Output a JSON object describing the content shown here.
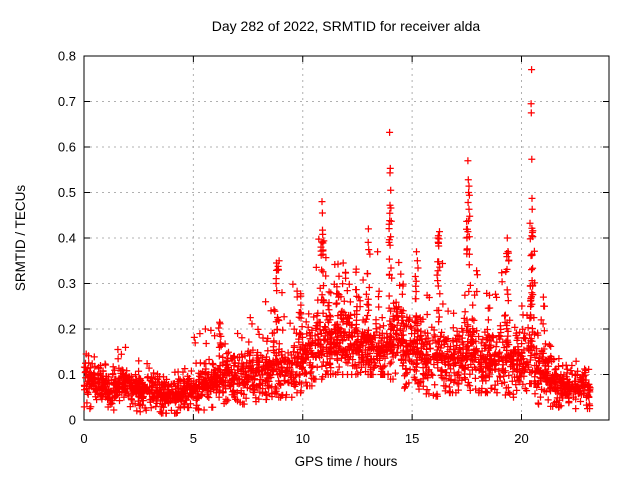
{
  "chart_data": {
    "type": "scatter",
    "title": "Day 282 of 2022, SRMTID for receiver alda",
    "xlabel": "GPS time / hours",
    "ylabel": "SRMTID / TECUs",
    "xlim": [
      0,
      24
    ],
    "ylim": [
      0,
      0.8
    ],
    "xticks": [
      0,
      5,
      10,
      15,
      20
    ],
    "yticks": [
      0,
      0.1,
      0.2,
      0.3,
      0.4,
      0.5,
      0.6,
      0.7,
      0.8
    ],
    "grid": true,
    "legend": "none",
    "x_data_range": [
      0,
      23.15
    ],
    "marker": {
      "shape": "plus",
      "color": "#ff0000",
      "size": 7
    },
    "colors": {
      "border": "#000000",
      "grid": "#b0b0b0",
      "background": "#ffffff"
    },
    "series_model": {
      "comment": "Dense ~2800-point scatter estimated from pixels: bins=[h0,h1,band_center,band_halfwidth,count,upper_tail_max,lower_min]; streaks=vertical bursts [x,y0,y1,n]; outliers=exact prominent points [x,y]",
      "seed": 20221282,
      "bins": [
        [
          0.0,
          0.5,
          0.085,
          0.03,
          55,
          0.15,
          0.025
        ],
        [
          0.5,
          1.0,
          0.075,
          0.028,
          55,
          0.13,
          0.022
        ],
        [
          1.0,
          1.5,
          0.07,
          0.025,
          55,
          0.125,
          0.022
        ],
        [
          1.5,
          2.0,
          0.08,
          0.03,
          55,
          0.16,
          0.022
        ],
        [
          2.0,
          2.5,
          0.07,
          0.025,
          55,
          0.12,
          0.02
        ],
        [
          2.5,
          3.0,
          0.065,
          0.025,
          55,
          0.13,
          0.018
        ],
        [
          3.0,
          3.5,
          0.06,
          0.022,
          55,
          0.105,
          0.015
        ],
        [
          3.5,
          4.0,
          0.055,
          0.02,
          55,
          0.1,
          0.015
        ],
        [
          4.0,
          4.5,
          0.055,
          0.02,
          55,
          0.11,
          0.015
        ],
        [
          4.5,
          5.0,
          0.062,
          0.025,
          55,
          0.13,
          0.018
        ],
        [
          5.0,
          5.5,
          0.072,
          0.03,
          55,
          0.19,
          0.022
        ],
        [
          5.5,
          6.0,
          0.08,
          0.032,
          55,
          0.2,
          0.028
        ],
        [
          6.0,
          6.5,
          0.092,
          0.035,
          55,
          0.22,
          0.03
        ],
        [
          6.5,
          7.0,
          0.1,
          0.035,
          55,
          0.185,
          0.035
        ],
        [
          7.0,
          7.5,
          0.102,
          0.035,
          55,
          0.2,
          0.035
        ],
        [
          7.5,
          8.0,
          0.11,
          0.04,
          55,
          0.23,
          0.035
        ],
        [
          8.0,
          8.5,
          0.112,
          0.042,
          55,
          0.26,
          0.045
        ],
        [
          8.5,
          9.0,
          0.12,
          0.05,
          55,
          0.33,
          0.05
        ],
        [
          9.0,
          9.5,
          0.11,
          0.042,
          50,
          0.28,
          0.05
        ],
        [
          9.5,
          10.0,
          0.125,
          0.05,
          55,
          0.3,
          0.06
        ],
        [
          10.0,
          10.5,
          0.14,
          0.052,
          58,
          0.33,
          0.075
        ],
        [
          10.5,
          11.0,
          0.155,
          0.058,
          58,
          0.4,
          0.09
        ],
        [
          11.0,
          11.5,
          0.17,
          0.055,
          58,
          0.36,
          0.1
        ],
        [
          11.5,
          12.0,
          0.175,
          0.055,
          58,
          0.35,
          0.1
        ],
        [
          12.0,
          12.5,
          0.165,
          0.055,
          58,
          0.33,
          0.1
        ],
        [
          12.5,
          13.0,
          0.162,
          0.055,
          58,
          0.35,
          0.1
        ],
        [
          13.0,
          13.5,
          0.155,
          0.052,
          56,
          0.38,
          0.1
        ],
        [
          13.5,
          14.0,
          0.158,
          0.052,
          56,
          0.33,
          0.1
        ],
        [
          14.0,
          14.5,
          0.175,
          0.06,
          58,
          0.43,
          0.09
        ],
        [
          14.5,
          15.0,
          0.15,
          0.055,
          56,
          0.32,
          0.07
        ],
        [
          15.0,
          15.5,
          0.16,
          0.055,
          58,
          0.37,
          0.055
        ],
        [
          15.5,
          16.0,
          0.14,
          0.05,
          55,
          0.28,
          0.045
        ],
        [
          16.0,
          16.5,
          0.138,
          0.052,
          55,
          0.39,
          0.045
        ],
        [
          16.5,
          17.0,
          0.12,
          0.048,
          55,
          0.25,
          0.06
        ],
        [
          17.0,
          17.5,
          0.13,
          0.05,
          55,
          0.3,
          0.06
        ],
        [
          17.5,
          18.0,
          0.158,
          0.062,
          58,
          0.43,
          0.065
        ],
        [
          18.0,
          18.5,
          0.13,
          0.05,
          55,
          0.28,
          0.06
        ],
        [
          18.5,
          19.0,
          0.13,
          0.05,
          55,
          0.3,
          0.06
        ],
        [
          19.0,
          19.5,
          0.14,
          0.052,
          55,
          0.38,
          0.055
        ],
        [
          19.5,
          20.0,
          0.13,
          0.05,
          55,
          0.3,
          0.05
        ],
        [
          20.0,
          20.35,
          0.13,
          0.05,
          38,
          0.28,
          0.055
        ],
        [
          20.35,
          20.6,
          0.2,
          0.095,
          30,
          0.44,
          0.08
        ],
        [
          20.6,
          21.0,
          0.11,
          0.045,
          45,
          0.26,
          0.035
        ],
        [
          21.0,
          21.5,
          0.09,
          0.038,
          55,
          0.19,
          0.03
        ],
        [
          21.5,
          22.0,
          0.078,
          0.03,
          58,
          0.14,
          0.028
        ],
        [
          22.0,
          22.5,
          0.07,
          0.028,
          58,
          0.13,
          0.025
        ],
        [
          22.5,
          23.15,
          0.068,
          0.028,
          62,
          0.12,
          0.025
        ]
      ],
      "streaks": [
        [
          6.2,
          0.08,
          0.21,
          9
        ],
        [
          8.85,
          0.14,
          0.355,
          13
        ],
        [
          9.9,
          0.1,
          0.295,
          11
        ],
        [
          10.9,
          0.14,
          0.42,
          16
        ],
        [
          11.25,
          0.12,
          0.32,
          11
        ],
        [
          11.6,
          0.12,
          0.345,
          12
        ],
        [
          12.0,
          0.12,
          0.33,
          11
        ],
        [
          12.5,
          0.12,
          0.335,
          10
        ],
        [
          13.0,
          0.12,
          0.405,
          13
        ],
        [
          14.0,
          0.15,
          0.46,
          20
        ],
        [
          14.55,
          0.12,
          0.3,
          10
        ],
        [
          15.2,
          0.12,
          0.365,
          13
        ],
        [
          16.2,
          0.1,
          0.4,
          15
        ],
        [
          17.55,
          0.14,
          0.45,
          18
        ],
        [
          18.5,
          0.1,
          0.28,
          9
        ],
        [
          19.35,
          0.12,
          0.385,
          13
        ],
        [
          20.45,
          0.1,
          0.46,
          24
        ],
        [
          21.05,
          0.08,
          0.26,
          9
        ]
      ],
      "outliers": [
        [
          0.1,
          0.145
        ],
        [
          1.55,
          0.155
        ],
        [
          2.5,
          0.13
        ],
        [
          5.3,
          0.19
        ],
        [
          5.55,
          0.2
        ],
        [
          6.2,
          0.215
        ],
        [
          7.6,
          0.225
        ],
        [
          8.3,
          0.26
        ],
        [
          8.55,
          0.24
        ],
        [
          8.78,
          0.3
        ],
        [
          8.8,
          0.345
        ],
        [
          8.86,
          0.33
        ],
        [
          8.92,
          0.35
        ],
        [
          9.05,
          0.28
        ],
        [
          10.88,
          0.48
        ],
        [
          10.9,
          0.455
        ],
        [
          13.0,
          0.42
        ],
        [
          13.97,
          0.632
        ],
        [
          14.0,
          0.553
        ],
        [
          13.99,
          0.543
        ],
        [
          14.02,
          0.505
        ],
        [
          13.99,
          0.472
        ],
        [
          14.03,
          0.466
        ],
        [
          14.05,
          0.437
        ],
        [
          15.2,
          0.37
        ],
        [
          16.18,
          0.4
        ],
        [
          16.2,
          0.405
        ],
        [
          16.23,
          0.398
        ],
        [
          16.25,
          0.414
        ],
        [
          17.5,
          0.365
        ],
        [
          17.55,
          0.57
        ],
        [
          17.55,
          0.414
        ],
        [
          17.56,
          0.478
        ],
        [
          17.57,
          0.528
        ],
        [
          17.58,
          0.5
        ],
        [
          17.6,
          0.514
        ],
        [
          17.6,
          0.463
        ],
        [
          17.62,
          0.494
        ],
        [
          17.63,
          0.448
        ],
        [
          19.35,
          0.4
        ],
        [
          20.44,
          0.695
        ],
        [
          20.45,
          0.675
        ],
        [
          20.46,
          0.77
        ],
        [
          20.47,
          0.573
        ],
        [
          20.48,
          0.487
        ],
        [
          20.49,
          0.463
        ],
        [
          20.5,
          0.412
        ],
        [
          20.9,
          0.22
        ],
        [
          21.0,
          0.27
        ],
        [
          21.05,
          0.25
        ]
      ]
    }
  }
}
